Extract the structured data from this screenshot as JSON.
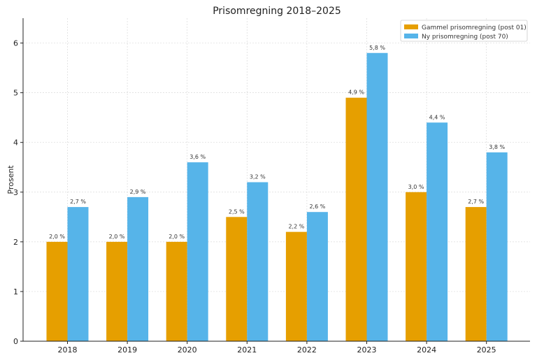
{
  "chart_data": {
    "type": "bar",
    "title": "Prisomregning 2018–2025",
    "xlabel": "",
    "ylabel": "Prosent",
    "ylim": [
      0,
      6.5
    ],
    "yticks": [
      0,
      1,
      2,
      3,
      4,
      5,
      6
    ],
    "grid": true,
    "legend_position": "top-right",
    "categories": [
      "2018",
      "2019",
      "2020",
      "2021",
      "2022",
      "2023",
      "2024",
      "2025"
    ],
    "series": [
      {
        "name": "Gammel prisomregning (post 01)",
        "color": "#E69F00",
        "values": [
          2.0,
          2.0,
          2.0,
          2.5,
          2.2,
          4.9,
          3.0,
          2.7
        ],
        "labels": [
          "2,0 %",
          "2,0 %",
          "2,0 %",
          "2,5 %",
          "2,2 %",
          "4,9 %",
          "3,0 %",
          "2,7 %"
        ]
      },
      {
        "name": "Ny prisomregning (post 70)",
        "color": "#56B4E9",
        "values": [
          2.7,
          2.9,
          3.6,
          3.2,
          2.6,
          5.8,
          4.4,
          3.8
        ],
        "labels": [
          "2,7 %",
          "2,9 %",
          "3,6 %",
          "3,2 %",
          "2,6 %",
          "5,8 %",
          "4,4 %",
          "3,8 %"
        ]
      }
    ]
  }
}
